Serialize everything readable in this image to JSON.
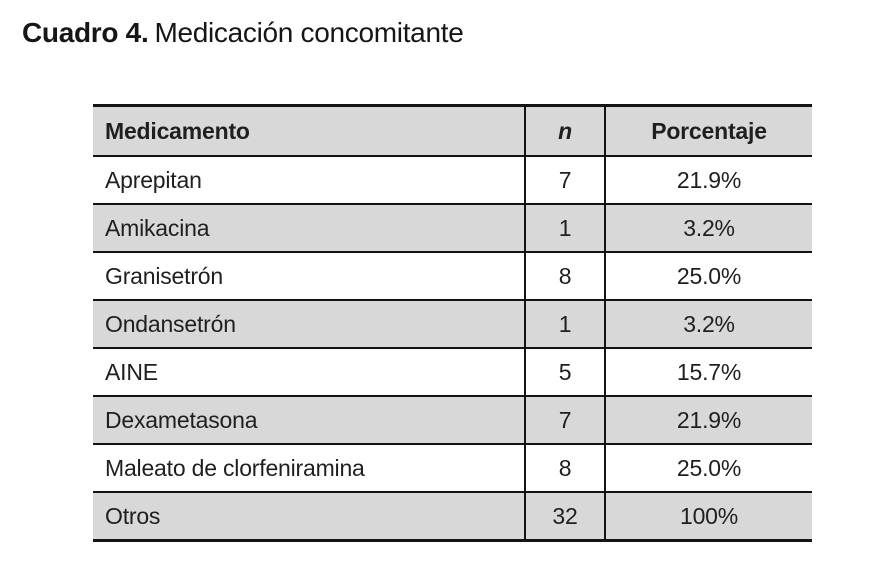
{
  "page": {
    "caption_label": "Cuadro 4.",
    "caption_text": "Medicación concomitante"
  },
  "table": {
    "headers": {
      "medicamento": "Medicamento",
      "n": "n",
      "porcentaje": "Porcentaje"
    },
    "rows": [
      {
        "medicamento": "Aprepitan",
        "n": "7",
        "porcentaje": "21.9%"
      },
      {
        "medicamento": "Amikacina",
        "n": "1",
        "porcentaje": "3.2%"
      },
      {
        "medicamento": "Granisetrón",
        "n": "8",
        "porcentaje": "25.0%"
      },
      {
        "medicamento": "Ondansetrón",
        "n": "1",
        "porcentaje": "3.2%"
      },
      {
        "medicamento": "AINE",
        "n": "5",
        "porcentaje": "15.7%"
      },
      {
        "medicamento": "Dexametasona",
        "n": "7",
        "porcentaje": "21.9%"
      },
      {
        "medicamento": "Maleato de clorfeniramina",
        "n": "8",
        "porcentaje": "25.0%"
      },
      {
        "medicamento": "Otros",
        "n": "32",
        "porcentaje": "100%"
      }
    ],
    "colors": {
      "header_bg": "#d8d8d8",
      "alt_row_bg": "#d8d8d8",
      "border": "#141414",
      "text": "#1f1f1f"
    }
  },
  "chart_data": {
    "type": "table",
    "title": "Cuadro 4. Medicación concomitante",
    "columns": [
      "Medicamento",
      "n",
      "Porcentaje"
    ],
    "rows": [
      [
        "Aprepitan",
        7,
        "21.9%"
      ],
      [
        "Amikacina",
        1,
        "3.2%"
      ],
      [
        "Granisetrón",
        8,
        "25.0%"
      ],
      [
        "Ondansetrón",
        1,
        "3.2%"
      ],
      [
        "AINE",
        5,
        "15.7%"
      ],
      [
        "Dexametasona",
        7,
        "21.9%"
      ],
      [
        "Maleato de clorfeniramina",
        8,
        "25.0%"
      ],
      [
        "Otros",
        32,
        "100%"
      ]
    ]
  }
}
